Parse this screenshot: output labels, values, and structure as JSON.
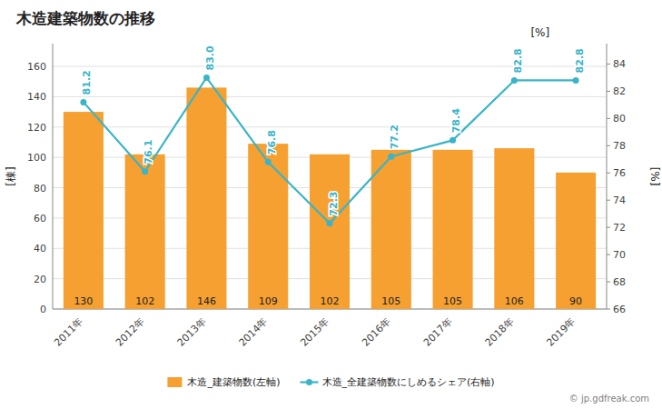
{
  "chart_data": {
    "type": "bar",
    "title": "木造建築物数の推移",
    "categories": [
      "2011年",
      "2012年",
      "2013年",
      "2014年",
      "2015年",
      "2016年",
      "2017年",
      "2018年",
      "2019年"
    ],
    "series": [
      {
        "name": "木造_建築物数(左軸)",
        "type": "bar",
        "color": "#f5a030",
        "values": [
          130,
          102,
          146,
          109,
          102,
          105,
          105,
          106,
          90
        ]
      },
      {
        "name": "木造_全建築物数にしめるシェア(右軸)",
        "type": "line",
        "axis": "y2",
        "color": "#3ab4c8",
        "marker": "circle",
        "values": [
          81.2,
          76.1,
          83.0,
          76.8,
          72.3,
          77.2,
          78.4,
          82.8,
          82.8
        ],
        "value_labels": [
          "81.2",
          "76.1",
          "83.0",
          "76.8",
          "72.3",
          "77.2",
          "78.4",
          "82.8",
          "82.8"
        ]
      }
    ],
    "y_label": "[棟]",
    "y2_label": "[%]",
    "ylim": [
      0,
      175
    ],
    "yticks": [
      0,
      20,
      40,
      60,
      80,
      100,
      120,
      140,
      160
    ],
    "y2lim": [
      66.0,
      85.5
    ],
    "y2ticks": [
      66,
      68,
      70,
      72,
      74,
      76,
      78,
      80,
      82,
      84
    ],
    "annotations": [
      "[%]",
      "© jp.gdfreak.com"
    ],
    "grid": true,
    "data_labels": true,
    "legend": "bottom"
  }
}
